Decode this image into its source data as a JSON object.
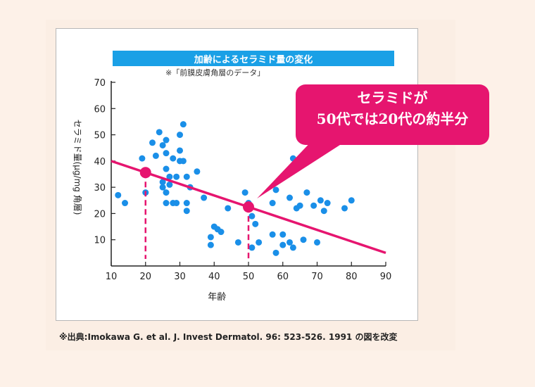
{
  "chart_data": {
    "type": "scatter",
    "title": "加齢によるセラミド量の変化",
    "subtitle": "※「前膜皮膚角層のデータ」",
    "xlabel": "年齢",
    "ylabel": "セラミド量(μg/mg 角層)",
    "xlim": [
      10,
      90
    ],
    "ylim": [
      0,
      70
    ],
    "x_ticks": [
      "10",
      "20",
      "30",
      "40",
      "50",
      "60",
      "70",
      "80",
      "90"
    ],
    "y_ticks": [
      "10",
      "20",
      "30",
      "40",
      "50",
      "60",
      "70"
    ],
    "grid": false,
    "series": [
      {
        "points": [
          [
            12,
            27
          ],
          [
            14,
            24
          ],
          [
            19,
            41
          ],
          [
            20,
            35
          ],
          [
            20,
            28
          ],
          [
            22,
            47
          ],
          [
            23,
            42
          ],
          [
            24,
            51
          ],
          [
            25,
            46
          ],
          [
            25,
            32
          ],
          [
            25,
            30
          ],
          [
            26,
            48
          ],
          [
            26,
            43
          ],
          [
            26,
            37
          ],
          [
            26,
            28
          ],
          [
            26,
            24
          ],
          [
            27,
            34
          ],
          [
            27,
            31
          ],
          [
            28,
            41
          ],
          [
            28,
            24
          ],
          [
            29,
            34
          ],
          [
            29,
            24
          ],
          [
            30,
            50
          ],
          [
            30,
            44
          ],
          [
            30,
            40
          ],
          [
            31,
            54
          ],
          [
            31,
            40
          ],
          [
            32,
            34
          ],
          [
            32,
            24
          ],
          [
            32,
            21
          ],
          [
            33,
            30
          ],
          [
            35,
            36
          ],
          [
            37,
            26
          ],
          [
            39,
            11
          ],
          [
            39,
            8
          ],
          [
            40,
            15
          ],
          [
            41,
            14
          ],
          [
            42,
            13
          ],
          [
            44,
            22
          ],
          [
            47,
            9
          ],
          [
            49,
            28
          ],
          [
            50,
            24
          ],
          [
            51,
            7
          ],
          [
            51,
            19
          ],
          [
            52,
            16
          ],
          [
            53,
            9
          ],
          [
            57,
            12
          ],
          [
            57,
            24
          ],
          [
            58,
            29
          ],
          [
            58,
            5
          ],
          [
            60,
            12
          ],
          [
            60,
            8
          ],
          [
            62,
            26
          ],
          [
            62,
            9
          ],
          [
            63,
            7
          ],
          [
            63,
            41
          ],
          [
            64,
            22
          ],
          [
            65,
            23
          ],
          [
            66,
            10
          ],
          [
            67,
            28
          ],
          [
            69,
            23
          ],
          [
            70,
            9
          ],
          [
            71,
            25
          ],
          [
            72,
            21
          ],
          [
            73,
            24
          ],
          [
            78,
            22
          ],
          [
            80,
            25
          ]
        ]
      }
    ],
    "trendline": {
      "x": [
        10,
        90
      ],
      "y": [
        40,
        5
      ]
    },
    "highlight_points": [
      {
        "x": 20,
        "y": 35.6
      },
      {
        "x": 50,
        "y": 22.5
      }
    ],
    "annotation": {
      "line1": "セラミドが",
      "line2": "50代では20代の約半分"
    }
  },
  "source": "※出典:Imokawa G. et al. J. Invest Dermatol. 96: 523-526. 1991 の図を改変",
  "colors": {
    "point": "#1a8fe8",
    "trend": "#e6156f",
    "title_bg": "#1aa0e6",
    "callout": "#e6156f"
  }
}
